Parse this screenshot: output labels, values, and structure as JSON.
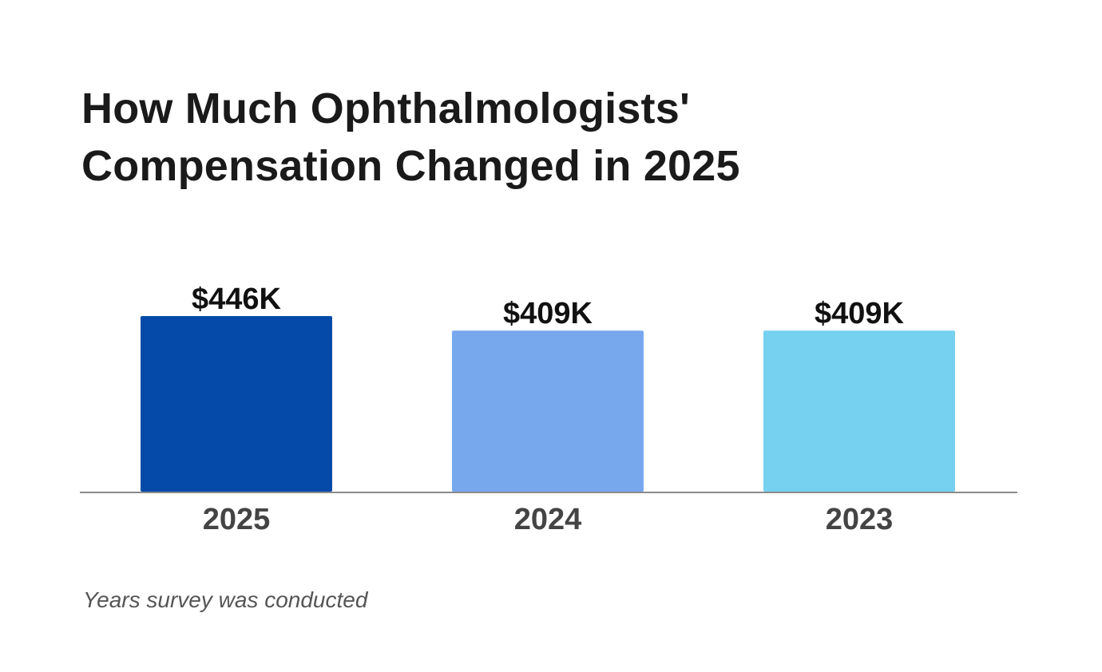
{
  "chart_data": {
    "type": "bar",
    "title_lines": [
      "How Much Ophthalmologists'",
      "Compensation Changed in 2025"
    ],
    "categories": [
      "2025",
      "2024",
      "2023"
    ],
    "values": [
      446,
      409,
      409
    ],
    "value_labels": [
      "$446K",
      "$409K",
      "$409K"
    ],
    "colors": [
      "#054aa8",
      "#77a8ee",
      "#76d0f0"
    ],
    "xlabel": "Years survey was conducted",
    "ylabel": "",
    "grid": false,
    "unit": "thousand USD"
  }
}
